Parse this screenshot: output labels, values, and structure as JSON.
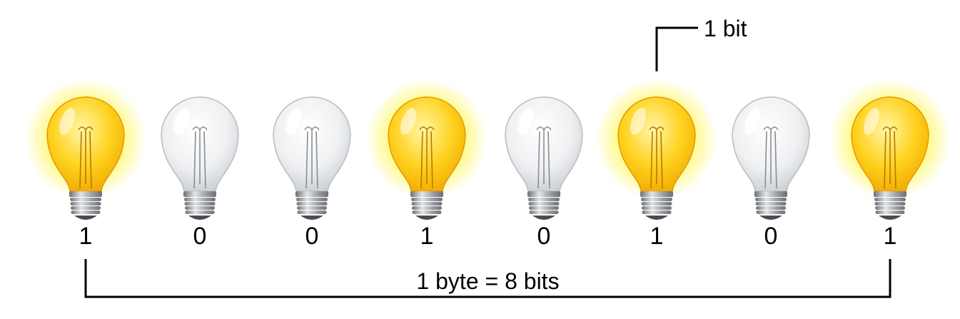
{
  "callout": {
    "label": "1 bit",
    "target_bulb_index": 5
  },
  "bulbs": [
    {
      "bit": "1",
      "state": "on"
    },
    {
      "bit": "0",
      "state": "off"
    },
    {
      "bit": "0",
      "state": "off"
    },
    {
      "bit": "1",
      "state": "on"
    },
    {
      "bit": "0",
      "state": "off"
    },
    {
      "bit": "1",
      "state": "on"
    },
    {
      "bit": "0",
      "state": "off"
    },
    {
      "bit": "1",
      "state": "on"
    }
  ],
  "byte_bracket": {
    "label": "1 byte = 8 bits"
  },
  "colors": {
    "glow": "#fff200",
    "bulb_on_light": "#fff6a8",
    "bulb_on_mid": "#ffd21f",
    "bulb_on_dark": "#f0a800",
    "bulb_off_light": "#ffffff",
    "bulb_off_mid": "#eef0f2",
    "bulb_off_dark": "#c9ccd0",
    "base_light": "#e2e4e6",
    "base_dark": "#6c7074",
    "line": "#000000",
    "text": "#000000"
  }
}
